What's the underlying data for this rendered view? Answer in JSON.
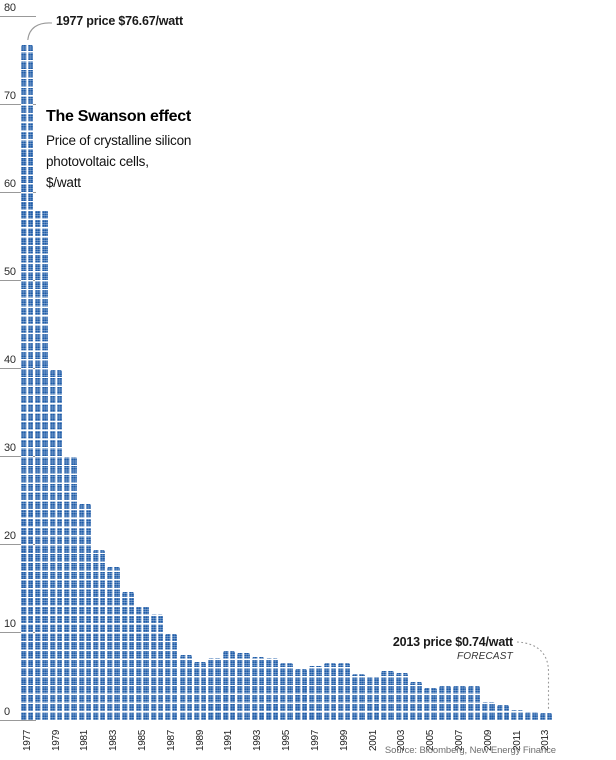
{
  "chart_data": {
    "type": "bar",
    "title": "The Swanson effect",
    "subtitle_lines": [
      "Price of crystalline silicon",
      "photovoltaic cells,",
      "$/watt"
    ],
    "ylabel": "$/watt",
    "ylim": [
      0,
      80
    ],
    "yticks": [
      80,
      70,
      60,
      50,
      40,
      30,
      20,
      10,
      0
    ],
    "grid": false,
    "legend": "none",
    "categories": [
      1977,
      1978,
      1979,
      1980,
      1981,
      1982,
      1983,
      1984,
      1985,
      1986,
      1987,
      1988,
      1989,
      1990,
      1991,
      1992,
      1993,
      1994,
      1995,
      1996,
      1997,
      1998,
      1999,
      2000,
      2001,
      2002,
      2003,
      2004,
      2005,
      2006,
      2007,
      2008,
      2009,
      2010,
      2011,
      2012,
      2013
    ],
    "values": [
      76.67,
      58,
      39.8,
      29.9,
      24.5,
      19.3,
      17.4,
      14.6,
      12.9,
      12.0,
      9.8,
      7.4,
      6.6,
      7.1,
      7.8,
      7.6,
      7.2,
      7.0,
      6.5,
      5.8,
      6.1,
      6.5,
      6.5,
      5.2,
      5.0,
      5.6,
      5.3,
      4.3,
      3.6,
      3.9,
      3.9,
      3.9,
      2.0,
      1.7,
      1.1,
      0.9,
      0.74
    ],
    "xtick_labels": [
      "1977",
      "1979",
      "1981",
      "1983",
      "1985",
      "1987",
      "1989",
      "1991",
      "1993",
      "1995",
      "1997",
      "1999",
      "2001",
      "2003",
      "2005",
      "2007",
      "2009",
      "2011",
      "2013"
    ],
    "annotations": [
      {
        "text": "1977 price $76.67/watt",
        "target_year": 1977,
        "value": 76.67
      },
      {
        "text": "2013 price $0.74/watt",
        "note": "FORECAST",
        "target_year": 2013,
        "value": 0.74
      }
    ]
  },
  "colors": {
    "bar_blue": "#1e5ca8",
    "axis_gray": "#999999",
    "text_dark": "#1a1a1a",
    "source_gray": "#6e6e6e"
  },
  "source": "Source: Bloomberg, New Energy Finance"
}
